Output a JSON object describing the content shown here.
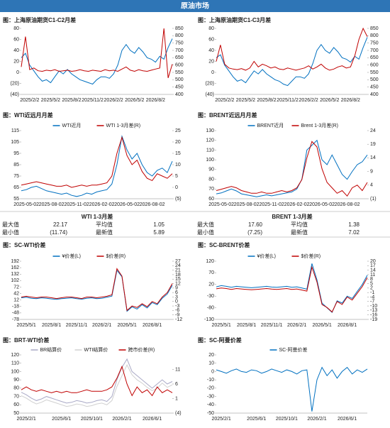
{
  "header": {
    "title": "原油市场"
  },
  "tables": [
    {
      "title": "WTI 1-3月差",
      "rows": [
        [
          "最大值",
          "22.17",
          "平均值",
          "1.05"
        ],
        [
          "最小值",
          "(11.74)",
          "最新值",
          "5.89"
        ]
      ]
    },
    {
      "title": "BRENT 1-3月差",
      "rows": [
        [
          "最大值",
          "17.60",
          "平均值",
          "1.38"
        ],
        [
          "最小值",
          "(7.25)",
          "最新值",
          "7.02"
        ]
      ]
    }
  ],
  "chart_data": [
    {
      "type": "line",
      "title": "图：上海原油期货C1-C2月差",
      "categories": [
        null,
        null,
        "2025/2/2",
        null,
        null,
        null,
        null,
        "2025/5/2",
        null,
        null,
        null,
        null,
        "2025/8/2",
        null,
        null,
        null,
        null,
        "2025/11/2",
        null,
        null,
        null,
        null,
        "2026/2/2",
        null,
        null,
        null,
        null,
        "2026/5/2",
        null,
        null,
        null,
        null,
        "2026/8/2",
        null,
        null,
        null,
        null
      ],
      "series": [
        {
          "color": "#0070c0",
          "axis": "y2",
          "values": [
            650,
            680,
            600,
            560,
            520,
            490,
            500,
            480,
            520,
            560,
            540,
            570,
            540,
            520,
            500,
            490,
            480,
            470,
            500,
            520,
            520,
            510,
            540,
            600,
            700,
            740,
            700,
            680,
            720,
            690,
            650,
            640,
            620,
            660,
            640,
            720,
            780
          ]
        },
        {
          "color": "#c00000",
          "values": [
            10,
            65,
            5,
            8,
            3,
            2,
            4,
            3,
            5,
            2,
            3,
            4,
            2,
            3,
            5,
            3,
            2,
            4,
            3,
            2,
            5,
            3,
            4,
            2,
            6,
            10,
            4,
            2,
            5,
            3,
            2,
            4,
            6,
            8,
            80,
            -10,
            15
          ]
        }
      ],
      "ylim": [
        -40,
        80
      ],
      "yticks": [
        80,
        60,
        40,
        20,
        0,
        {
          "value": -20,
          "label": "(20)"
        },
        {
          "value": -40,
          "label": "(40)"
        }
      ],
      "y2lim": [
        400,
        850
      ],
      "y2ticks": [
        850,
        800,
        750,
        700,
        650,
        600,
        550,
        500,
        450,
        400
      ]
    },
    {
      "type": "line",
      "title": "图：上海原油期货C1-C3月差",
      "categories": [
        null,
        null,
        "2025/2/2",
        null,
        null,
        null,
        null,
        "2025/5/2",
        null,
        null,
        null,
        null,
        "2025/8/2",
        null,
        null,
        null,
        null,
        "2025/11/2",
        null,
        null,
        null,
        null,
        "2026/2/2",
        null,
        null,
        null,
        null,
        "2026/5/2",
        null,
        null,
        null,
        null,
        "2026/8/2",
        null,
        null,
        null,
        null
      ],
      "series": [
        {
          "color": "#0070c0",
          "axis": "y2",
          "values": [
            650,
            670,
            600,
            560,
            520,
            490,
            500,
            480,
            520,
            560,
            540,
            570,
            540,
            520,
            500,
            490,
            470,
            460,
            490,
            520,
            520,
            510,
            540,
            610,
            700,
            740,
            700,
            680,
            720,
            690,
            650,
            640,
            620,
            660,
            640,
            720,
            790
          ]
        },
        {
          "color": "#c00000",
          "values": [
            20,
            50,
            15,
            8,
            6,
            5,
            7,
            4,
            8,
            20,
            10,
            15,
            12,
            8,
            10,
            6,
            5,
            8,
            6,
            4,
            6,
            8,
            12,
            6,
            10,
            15,
            8,
            4,
            6,
            10,
            12,
            8,
            10,
            30,
            60,
            80,
            65
          ]
        }
      ],
      "ylim": [
        -40,
        80
      ],
      "yticks": [
        80,
        60,
        40,
        20,
        0,
        {
          "value": -20,
          "label": "(20)"
        },
        {
          "value": -40,
          "label": "(40)"
        }
      ],
      "y2lim": [
        400,
        850
      ],
      "y2ticks": [
        850,
        800,
        750,
        700,
        650,
        600,
        550,
        500,
        450,
        400
      ]
    },
    {
      "type": "line",
      "title": "图：WTI近远月月差",
      "categories": [
        null,
        "2025-05-02",
        null,
        null,
        null,
        null,
        "2025-08-02",
        null,
        null,
        null,
        null,
        "2025-11-02",
        null,
        null,
        null,
        null,
        "2026-02-02",
        null,
        null,
        null,
        null,
        "2026-05-02",
        null,
        null,
        null,
        null,
        "2026-08-02",
        null,
        null,
        null,
        null
      ],
      "series": [
        {
          "name": "WTI近月",
          "color": "#0070c0",
          "values": [
            62,
            63,
            65,
            66,
            64,
            62,
            61,
            60,
            59,
            60,
            58,
            57,
            58,
            60,
            59,
            61,
            62,
            63,
            68,
            85,
            110,
            98,
            90,
            95,
            85,
            78,
            75,
            80,
            82,
            78,
            88
          ]
        },
        {
          "name": "WTI 1-3月差(R)",
          "color": "#c00000",
          "axis": "y2",
          "values": [
            1,
            1.5,
            2,
            2.5,
            2,
            1.5,
            1,
            0.5,
            0.5,
            1,
            0,
            0.5,
            1,
            0.5,
            1,
            1,
            1.5,
            2,
            5,
            15,
            22,
            14,
            10,
            12,
            7,
            4,
            3,
            6,
            5,
            4,
            6
          ]
        }
      ],
      "ylim": [
        55,
        115
      ],
      "yticks": [
        115,
        105,
        95,
        85,
        75,
        65,
        55
      ],
      "y2lim": [
        -5,
        25
      ],
      "y2ticks": [
        25,
        20,
        15,
        10,
        5,
        0,
        {
          "value": -5,
          "label": "(5)"
        }
      ]
    },
    {
      "type": "line",
      "title": "图：BRENT近远月月差",
      "categories": [
        null,
        "2025-05-02",
        null,
        null,
        null,
        null,
        "2025-08-02",
        null,
        null,
        null,
        null,
        "2025-11-02",
        null,
        null,
        null,
        null,
        "2026-02-02",
        null,
        null,
        null,
        null,
        "2026-05-02",
        null,
        null,
        null,
        null,
        "2026-08-02",
        null,
        null,
        null,
        null
      ],
      "series": [
        {
          "name": "BRENT近月",
          "color": "#0070c0",
          "values": [
            65,
            66,
            68,
            70,
            68,
            65,
            64,
            63,
            62,
            63,
            64,
            63,
            64,
            65,
            66,
            67,
            70,
            80,
            110,
            115,
            120,
            100,
            95,
            105,
            95,
            85,
            80,
            88,
            95,
            98,
            105
          ]
        },
        {
          "name": "Brent 1-3月差(R)",
          "color": "#c00000",
          "axis": "y2",
          "values": [
            2,
            2.5,
            3,
            3.5,
            3,
            2,
            1.5,
            1,
            1,
            1.5,
            1,
            1,
            1.5,
            2,
            1.5,
            2,
            3,
            6,
            14,
            20,
            18,
            10,
            5,
            3,
            1,
            2,
            0,
            3,
            4,
            2,
            5
          ]
        }
      ],
      "ylim": [
        60,
        130
      ],
      "yticks": [
        130,
        120,
        110,
        100,
        90,
        80,
        70,
        60
      ],
      "y2lim": [
        -1,
        24
      ],
      "y2ticks": [
        24,
        19,
        14,
        9,
        4,
        {
          "value": -1,
          "label": "(1)"
        }
      ]
    },
    {
      "type": "line",
      "title": "图：SC-WTI价差",
      "categories": [
        null,
        "2025/5/1",
        null,
        null,
        null,
        null,
        "2025/8/1",
        null,
        null,
        null,
        null,
        "2025/11/1",
        null,
        null,
        null,
        null,
        "2026/2/1",
        null,
        null,
        null,
        null,
        "2026/5/1",
        null,
        null,
        null,
        null,
        "2026/8/1",
        null,
        null,
        null,
        null
      ],
      "series": [
        {
          "name": "¥价差(L)",
          "color": "#0070c0",
          "values": [
            22,
            25,
            20,
            18,
            22,
            20,
            17,
            15,
            18,
            20,
            22,
            18,
            16,
            20,
            22,
            18,
            20,
            25,
            30,
            150,
            120,
            -40,
            -20,
            -30,
            -10,
            -25,
            0,
            -10,
            20,
            40,
            80
          ]
        },
        {
          "name": "$价差(R)",
          "color": "#c00000",
          "axis": "y2",
          "values": [
            3,
            3.5,
            3,
            2.5,
            3,
            3,
            2.5,
            2,
            2.5,
            3,
            3,
            2.5,
            2,
            3,
            3,
            2.5,
            3,
            3.5,
            4.5,
            22,
            17,
            -6,
            -3,
            -4,
            -1.5,
            -3.5,
            0,
            -1.5,
            3,
            6,
            12
          ]
        }
      ],
      "ylim": [
        -78,
        192
      ],
      "yticks": [
        192,
        162,
        132,
        102,
        72,
        42,
        12,
        -18,
        -48,
        -78
      ],
      "y2lim": [
        -12,
        27
      ],
      "y2ticks": [
        27,
        24,
        21,
        18,
        15,
        12,
        9,
        6,
        3,
        0,
        -3,
        -6,
        -9,
        -12
      ]
    },
    {
      "type": "line",
      "title": "图：SC-BRENT价差",
      "categories": [
        null,
        "2025/5/1",
        null,
        null,
        null,
        null,
        "2025/8/1",
        null,
        null,
        null,
        null,
        "2025/11/1",
        null,
        null,
        null,
        null,
        "2026/2/1",
        null,
        null,
        null,
        null,
        "2026/5/1",
        null,
        null,
        null,
        null,
        "2026/8/1",
        null,
        null,
        null,
        null
      ],
      "series": [
        {
          "name": "¥价差(L)",
          "color": "#0070c0",
          "values": [
            10,
            15,
            12,
            8,
            12,
            10,
            8,
            6,
            8,
            10,
            12,
            9,
            8,
            10,
            12,
            8,
            10,
            5,
            0,
            110,
            40,
            -60,
            -80,
            -100,
            -50,
            -60,
            -30,
            -40,
            -10,
            20,
            60
          ]
        },
        {
          "name": "$价差(R)",
          "color": "#c00000",
          "axis": "y2",
          "values": [
            1.5,
            2,
            1.7,
            1.1,
            1.7,
            1.4,
            1.1,
            0.9,
            1.1,
            1.4,
            1.7,
            1.3,
            1.1,
            1.4,
            1.7,
            1.1,
            1.4,
            0.7,
            0,
            16,
            6,
            -9,
            -11,
            -14,
            -7,
            -9,
            -4,
            -6,
            -1.5,
            3,
            9
          ]
        }
      ],
      "ylim": [
        -130,
        120
      ],
      "yticks": [
        120,
        70,
        20,
        -30,
        -80,
        -130
      ],
      "y2lim": [
        -19,
        20
      ],
      "y2ticks": [
        20,
        17,
        14,
        11,
        8,
        5,
        2,
        -1,
        -4,
        -7,
        -10,
        -13,
        -16,
        -19
      ]
    },
    {
      "type": "line",
      "title": "图：BRT-WTI价差",
      "categories": [
        null,
        "2025/2/1",
        null,
        null,
        null,
        null,
        null,
        null,
        "2025/6/1",
        null,
        null,
        null,
        null,
        null,
        "2025/10/1",
        null,
        null,
        null,
        null,
        null,
        "2026/2/1",
        null,
        null,
        null,
        null,
        null,
        "2026/6/1",
        null,
        null,
        null,
        null
      ],
      "series": [
        {
          "name": "BR结算价",
          "color": "#a9a9c6",
          "values": [
            75,
            72,
            68,
            65,
            67,
            70,
            68,
            66,
            64,
            62,
            63,
            65,
            64,
            62,
            63,
            65,
            66,
            64,
            70,
            90,
            105,
            115,
            100,
            95,
            90,
            85,
            80,
            85,
            90,
            85,
            88
          ]
        },
        {
          "name": "WTI结算价",
          "color": "#d0d0d0",
          "values": [
            71,
            68,
            64,
            61,
            63,
            66,
            64,
            62,
            60,
            58,
            59,
            61,
            60,
            58,
            59,
            61,
            62,
            60,
            65,
            82,
            95,
            108,
            96,
            90,
            86,
            81,
            77,
            80,
            86,
            81,
            84
          ]
        },
        {
          "name": "跨市价差(R)",
          "color": "#c00000",
          "axis": "y2",
          "values": [
            4,
            5,
            4,
            3.5,
            4,
            3.5,
            3,
            3.5,
            3,
            3.5,
            3,
            3,
            3.5,
            4,
            3.5,
            3.5,
            3.5,
            4,
            5,
            8,
            12,
            6,
            2,
            5,
            3,
            4,
            2,
            5,
            3,
            4,
            3
          ]
        }
      ],
      "ylim": [
        50,
        120
      ],
      "yticks": [
        120,
        110,
        100,
        90,
        80,
        70,
        60,
        50
      ],
      "y2lim": [
        -4,
        16
      ],
      "y2ticks": [
        11,
        6,
        1,
        {
          "value": -4,
          "label": "(4)"
        }
      ]
    },
    {
      "type": "line",
      "title": "图：SC-阿曼价差",
      "categories": [
        null,
        "2025/2/1",
        null,
        null,
        null,
        null,
        null,
        null,
        "2025/6/1",
        null,
        null,
        null,
        null,
        null,
        "2025/10/1",
        null,
        null,
        null,
        null,
        null,
        "2026/2/1",
        null,
        null,
        null,
        null,
        null,
        "2026/6/1",
        null,
        null,
        null,
        null
      ],
      "series": [
        {
          "name": "SC-阿曼价差",
          "color": "#0070c0",
          "values": [
            2,
            0,
            -2,
            1,
            3,
            0,
            -1,
            2,
            1,
            -2,
            0,
            3,
            1,
            -1,
            2,
            0,
            -3,
            1,
            2,
            -48,
            -10,
            5,
            -5,
            2,
            -8,
            0,
            5,
            -3,
            2,
            -1,
            3
          ]
        }
      ],
      "ylim": [
        -50,
        20
      ],
      "yticks": [
        20,
        10,
        0,
        -10,
        -20,
        -30,
        -40,
        -50
      ]
    }
  ]
}
